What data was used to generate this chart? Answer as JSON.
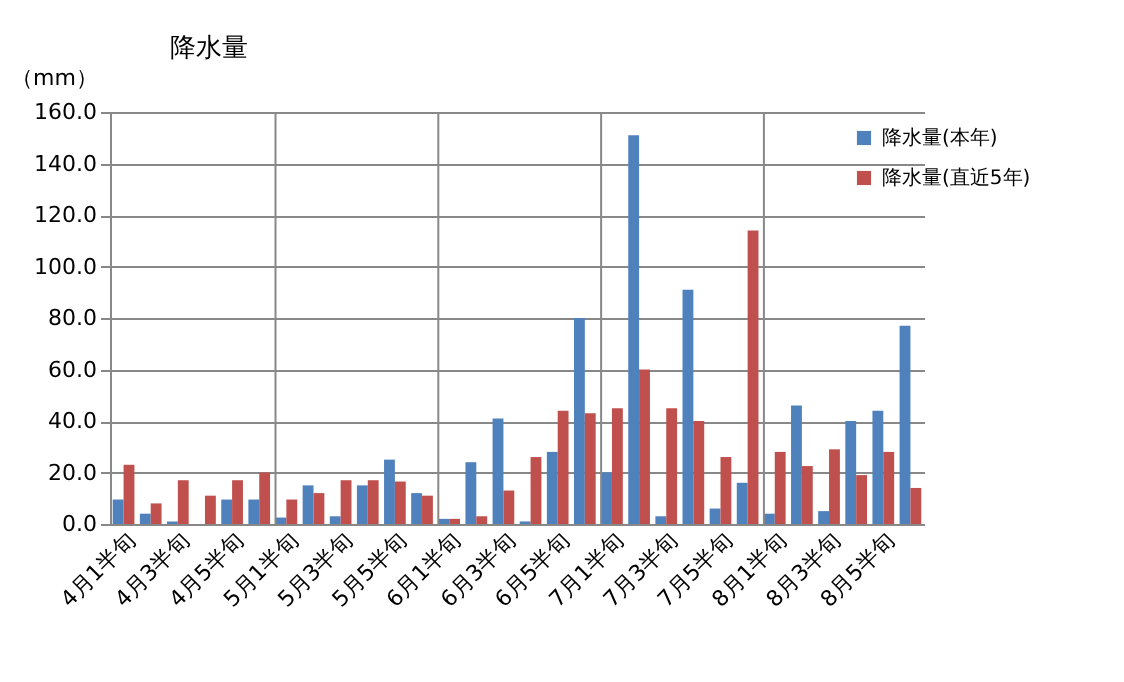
{
  "chart_data": {
    "type": "bar",
    "title": "降水量",
    "ylabel": "（mm）",
    "categories": [
      "4月1半旬",
      null,
      "4月3半旬",
      null,
      "4月5半旬",
      null,
      "5月1半旬",
      null,
      "5月3半旬",
      null,
      "5月5半旬",
      null,
      "6月1半旬",
      null,
      "6月3半旬",
      null,
      "6月5半旬",
      null,
      "7月1半旬",
      null,
      "7月3半旬",
      null,
      "7月5半旬",
      null,
      "8月1半旬",
      null,
      "8月3半旬",
      null,
      "8月5半旬",
      null
    ],
    "series": [
      {
        "name": "降水量(本年)",
        "color": "#4f81bd",
        "values": [
          9.5,
          4,
          1,
          0,
          9.5,
          9.5,
          2.5,
          15,
          3,
          15,
          25,
          12,
          2,
          24,
          41,
          1,
          28,
          80,
          20,
          151,
          3,
          91,
          6,
          16,
          4,
          46,
          5,
          40,
          44,
          77
        ]
      },
      {
        "name": "降水量(直近5年)",
        "color": "#c0504d",
        "values": [
          23,
          8,
          17,
          11,
          17,
          20,
          9.5,
          12,
          17,
          17,
          16.5,
          11,
          2,
          3,
          13,
          26,
          44,
          43,
          45,
          60,
          45,
          40,
          26,
          114,
          28,
          22.5,
          29,
          19,
          28,
          14
        ]
      }
    ],
    "ylim": [
      0,
      160
    ],
    "yticks": [
      {
        "value": 0,
        "label": "0.0"
      },
      {
        "value": 20,
        "label": "20.0"
      },
      {
        "value": 40,
        "label": "40.0"
      },
      {
        "value": 60,
        "label": "60.0"
      },
      {
        "value": 80,
        "label": "80.0"
      },
      {
        "value": 100,
        "label": "100.0"
      },
      {
        "value": 120,
        "label": "120.0"
      },
      {
        "value": 140,
        "label": "140.0"
      },
      {
        "value": 160,
        "label": "160.0"
      }
    ],
    "grid": true,
    "legend": "top right"
  }
}
